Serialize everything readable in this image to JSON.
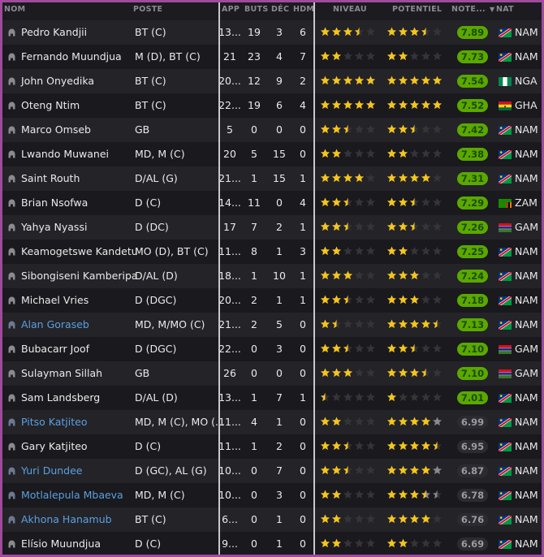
{
  "header": {
    "nom": "NOM",
    "poste": "POSTE",
    "app": "APP",
    "buts": "BUTS",
    "dec": "DÉC",
    "hdm": "HDM",
    "niveau": "NIVEAU",
    "potentiel": "POTENTIEL",
    "note": "NOTE...",
    "nat": "NAT",
    "sort_icon": "sort-desc-triangle"
  },
  "colors": {
    "star": "#f5c518",
    "star_empty": "#35343a",
    "star_range": "#8a8a8e",
    "note_good": "#5aa800",
    "loan_name": "#5aa0e0",
    "border": "#a04a9e"
  },
  "players": [
    {
      "name": "Pedro Kandjii",
      "pos": "BT (C)",
      "app": "13...",
      "buts": "19",
      "dec": "3",
      "hdm": "6",
      "niveau": 3.5,
      "potentiel": 3.5,
      "note": "7.89",
      "nat": "NAM"
    },
    {
      "name": "Fernando Muundjua",
      "pos": "M (D), BT (C)",
      "app": "21",
      "buts": "23",
      "dec": "4",
      "hdm": "7",
      "niveau": 2,
      "potentiel": 2,
      "note": "7.73",
      "nat": "NAM"
    },
    {
      "name": "John Onyedika",
      "pos": "BT (C)",
      "app": "20...",
      "buts": "12",
      "dec": "9",
      "hdm": "2",
      "niveau": 5,
      "potentiel": 5,
      "note": "7.54",
      "nat": "NGA"
    },
    {
      "name": "Oteng Ntim",
      "pos": "BT (C)",
      "app": "22...",
      "buts": "19",
      "dec": "6",
      "hdm": "4",
      "niveau": 5,
      "potentiel": 5,
      "note": "7.52",
      "nat": "GHA"
    },
    {
      "name": "Marco Omseb",
      "pos": "GB",
      "app": "5",
      "buts": "0",
      "dec": "0",
      "hdm": "0",
      "niveau": 2.5,
      "potentiel": 2.5,
      "note": "7.42",
      "nat": "NAM"
    },
    {
      "name": "Lwando Muwanei",
      "pos": "MD, M (C)",
      "app": "20",
      "buts": "5",
      "dec": "15",
      "hdm": "0",
      "niveau": 2,
      "potentiel": 2,
      "note": "7.38",
      "nat": "NAM"
    },
    {
      "name": "Saint Routh",
      "pos": "D/AL (G)",
      "app": "21...",
      "buts": "1",
      "dec": "15",
      "hdm": "1",
      "niveau": 4,
      "potentiel": 4,
      "note": "7.31",
      "nat": "NAM"
    },
    {
      "name": "Brian Nsofwa",
      "pos": "D (C)",
      "app": "14...",
      "buts": "11",
      "dec": "0",
      "hdm": "4",
      "niveau": 2.5,
      "potentiel": 2.5,
      "note": "7.29",
      "nat": "ZAM"
    },
    {
      "name": "Yahya Nyassi",
      "pos": "D (DC)",
      "app": "17",
      "buts": "7",
      "dec": "2",
      "hdm": "1",
      "niveau": 2.5,
      "potentiel": 2.5,
      "note": "7.26",
      "nat": "GAM"
    },
    {
      "name": "Keamogetswe Kandetu",
      "pos": "MO (D), BT (C)",
      "app": "11...",
      "buts": "8",
      "dec": "1",
      "hdm": "3",
      "niveau": 2,
      "potentiel": 2,
      "note": "7.25",
      "nat": "NAM"
    },
    {
      "name": "Sibongiseni Kamberipa",
      "pos": "D/AL (D)",
      "app": "18...",
      "buts": "1",
      "dec": "10",
      "hdm": "1",
      "niveau": 3,
      "potentiel": 3,
      "note": "7.24",
      "nat": "NAM"
    },
    {
      "name": "Michael Vries",
      "pos": "D (DGC)",
      "app": "20...",
      "buts": "2",
      "dec": "1",
      "hdm": "1",
      "niveau": 2.5,
      "potentiel": 3,
      "note": "7.18",
      "nat": "NAM"
    },
    {
      "name": "Alan Goraseb",
      "pos": "MD, M/MO (C)",
      "app": "21...",
      "buts": "2",
      "dec": "5",
      "hdm": "0",
      "niveau": 1.5,
      "potentiel": 4.5,
      "note": "7.13",
      "nat": "NAM",
      "loan": true
    },
    {
      "name": "Bubacarr Joof",
      "pos": "D (DGC)",
      "app": "22...",
      "buts": "0",
      "dec": "3",
      "hdm": "0",
      "niveau": 2.5,
      "potentiel": 2.5,
      "note": "7.10",
      "nat": "GAM"
    },
    {
      "name": "Sulayman Sillah",
      "pos": "GB",
      "app": "26",
      "buts": "0",
      "dec": "0",
      "hdm": "0",
      "niveau": 3,
      "potentiel": 3.5,
      "note": "7.10",
      "nat": "GAM"
    },
    {
      "name": "Sam Landsberg",
      "pos": "D/AL (D)",
      "app": "13...",
      "buts": "1",
      "dec": "7",
      "hdm": "1",
      "niveau": 0.5,
      "potentiel": 1,
      "note": "7.01",
      "nat": "NAM"
    },
    {
      "name": "Pitso Katjiteo",
      "pos": "MD, M (C), MO (...",
      "app": "11...",
      "buts": "4",
      "dec": "1",
      "hdm": "0",
      "niveau": 2,
      "potentiel": 4,
      "potentiel_max": 5,
      "note": "6.99",
      "nat": "NAM",
      "loan": true
    },
    {
      "name": "Gary Katjiteo",
      "pos": "D (C)",
      "app": "11...",
      "buts": "1",
      "dec": "2",
      "hdm": "0",
      "niveau": 2.5,
      "potentiel": 4.5,
      "note": "6.95",
      "nat": "NAM"
    },
    {
      "name": "Yuri Dundee",
      "pos": "D (GC), AL (G)",
      "app": "10...",
      "buts": "0",
      "dec": "7",
      "hdm": "0",
      "niveau": 2.5,
      "potentiel": 4,
      "potentiel_max": 5,
      "note": "6.87",
      "nat": "NAM",
      "loan": true
    },
    {
      "name": "Motlalepula Mbaeva",
      "pos": "MD, M (C)",
      "app": "10...",
      "buts": "0",
      "dec": "3",
      "hdm": "0",
      "niveau": 2,
      "potentiel": 3.5,
      "potentiel_max": 4.5,
      "note": "6.78",
      "nat": "NAM",
      "loan": true
    },
    {
      "name": "Akhona Hanamub",
      "pos": "BT (C)",
      "app": "6...",
      "buts": "0",
      "dec": "1",
      "hdm": "0",
      "niveau": 2,
      "potentiel": 4,
      "note": "6.76",
      "nat": "NAM",
      "loan": true
    },
    {
      "name": "Elísio Muundjua",
      "pos": "D (C)",
      "app": "9...",
      "buts": "0",
      "dec": "1",
      "hdm": "0",
      "niveau": 2,
      "potentiel": 2,
      "note": "6.69",
      "nat": "NAM"
    }
  ]
}
